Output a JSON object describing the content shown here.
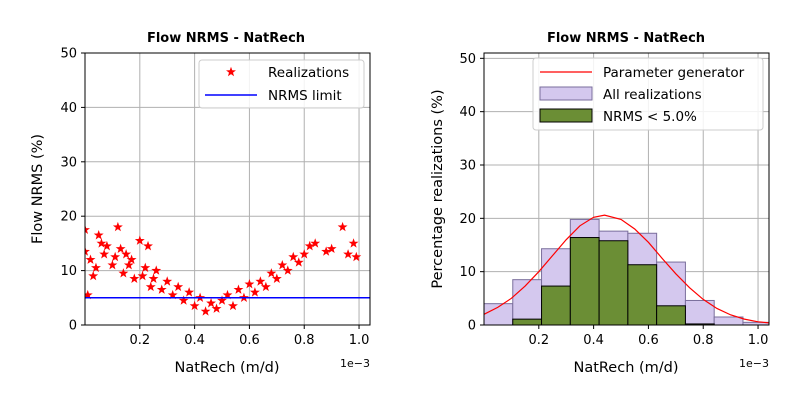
{
  "chart_data": [
    {
      "type": "scatter",
      "title": "Flow NRMS - NatRech",
      "xlabel": "NatRech (m/d)",
      "ylabel": "Flow NRMS (%)",
      "x_offset_text": "1e−3",
      "xlim": [
        0.0,
        1.04
      ],
      "ylim": [
        0,
        50
      ],
      "xticks": [
        0.2,
        0.4,
        0.6,
        0.8,
        1.0
      ],
      "xtick_labels": [
        "0.2",
        "0.4",
        "0.6",
        "0.8",
        "1.0"
      ],
      "yticks": [
        0,
        10,
        20,
        30,
        40,
        50
      ],
      "ytick_labels": [
        "0",
        "10",
        "20",
        "30",
        "40",
        "50"
      ],
      "grid": true,
      "legend_position": "top-right",
      "nrms_limit": 5.0,
      "series": [
        {
          "name": "Realizations",
          "marker": "star",
          "color": "#ff0000",
          "points": [
            [
              0.0,
              17.5
            ],
            [
              0.0,
              13.5
            ],
            [
              0.01,
              5.5
            ],
            [
              0.02,
              12.0
            ],
            [
              0.03,
              9.0
            ],
            [
              0.04,
              10.5
            ],
            [
              0.05,
              16.5
            ],
            [
              0.06,
              15.0
            ],
            [
              0.07,
              13.0
            ],
            [
              0.08,
              14.5
            ],
            [
              0.1,
              11.0
            ],
            [
              0.11,
              12.5
            ],
            [
              0.12,
              18.0
            ],
            [
              0.13,
              14.0
            ],
            [
              0.14,
              9.5
            ],
            [
              0.15,
              13.0
            ],
            [
              0.16,
              11.0
            ],
            [
              0.17,
              12.0
            ],
            [
              0.18,
              8.5
            ],
            [
              0.2,
              15.5
            ],
            [
              0.21,
              9.0
            ],
            [
              0.22,
              10.5
            ],
            [
              0.23,
              14.5
            ],
            [
              0.24,
              7.0
            ],
            [
              0.25,
              8.5
            ],
            [
              0.26,
              10.0
            ],
            [
              0.28,
              6.5
            ],
            [
              0.3,
              8.0
            ],
            [
              0.32,
              5.5
            ],
            [
              0.34,
              7.0
            ],
            [
              0.36,
              4.5
            ],
            [
              0.38,
              6.0
            ],
            [
              0.4,
              3.5
            ],
            [
              0.42,
              5.0
            ],
            [
              0.44,
              2.5
            ],
            [
              0.46,
              4.0
            ],
            [
              0.48,
              3.0
            ],
            [
              0.5,
              4.5
            ],
            [
              0.52,
              5.5
            ],
            [
              0.54,
              3.5
            ],
            [
              0.56,
              6.5
            ],
            [
              0.58,
              5.0
            ],
            [
              0.6,
              7.5
            ],
            [
              0.62,
              6.0
            ],
            [
              0.64,
              8.0
            ],
            [
              0.66,
              7.0
            ],
            [
              0.68,
              9.5
            ],
            [
              0.7,
              8.5
            ],
            [
              0.72,
              11.0
            ],
            [
              0.74,
              10.0
            ],
            [
              0.76,
              12.5
            ],
            [
              0.78,
              11.5
            ],
            [
              0.8,
              13.0
            ],
            [
              0.82,
              14.5
            ],
            [
              0.84,
              15.0
            ],
            [
              0.88,
              13.5
            ],
            [
              0.9,
              14.0
            ],
            [
              0.94,
              18.0
            ],
            [
              0.96,
              13.0
            ],
            [
              0.98,
              15.0
            ],
            [
              0.99,
              12.5
            ]
          ]
        },
        {
          "name": "NRMS limit",
          "type": "line",
          "color": "#0000ff",
          "y": 5.0
        }
      ]
    },
    {
      "type": "bar",
      "title": "Flow NRMS - NatRech",
      "xlabel": "NatRech (m/d)",
      "ylabel": "Percentage realizations (%)",
      "x_offset_text": "1e−3",
      "xlim": [
        0.0,
        1.04
      ],
      "ylim": [
        0,
        51
      ],
      "xticks": [
        0.2,
        0.4,
        0.6,
        0.8,
        1.0
      ],
      "xtick_labels": [
        "0.2",
        "0.4",
        "0.6",
        "0.8",
        "1.0"
      ],
      "yticks": [
        0,
        10,
        20,
        30,
        40,
        50
      ],
      "ytick_labels": [
        "0",
        "10",
        "20",
        "30",
        "40",
        "50"
      ],
      "grid": true,
      "legend_position": "top-right",
      "bin_edges": [
        0.0,
        0.105,
        0.21,
        0.315,
        0.42,
        0.525,
        0.63,
        0.735,
        0.84,
        0.945,
        1.04
      ],
      "series": [
        {
          "name": "Parameter generator",
          "type": "line",
          "color": "#ff0000",
          "x": [
            0.0,
            0.05,
            0.1,
            0.15,
            0.2,
            0.25,
            0.3,
            0.35,
            0.4,
            0.44,
            0.5,
            0.55,
            0.6,
            0.65,
            0.7,
            0.75,
            0.8,
            0.85,
            0.9,
            0.95,
            1.0,
            1.04
          ],
          "y": [
            2.0,
            3.3,
            5.0,
            7.3,
            10.0,
            13.0,
            16.0,
            18.6,
            20.2,
            20.6,
            19.8,
            18.0,
            15.5,
            12.5,
            9.6,
            7.0,
            4.8,
            3.1,
            1.9,
            1.1,
            0.6,
            0.4
          ]
        },
        {
          "name": "All realizations",
          "color": "#d4c8ee",
          "values": [
            4.0,
            8.5,
            14.3,
            19.8,
            17.6,
            17.2,
            11.8,
            4.6,
            1.5,
            0.5
          ]
        },
        {
          "name": "NRMS < 5.0%",
          "color": "#6b8e35",
          "values": [
            0.0,
            1.1,
            7.3,
            16.4,
            15.8,
            11.3,
            3.6,
            0.2,
            0.0,
            0.0
          ]
        }
      ]
    }
  ]
}
